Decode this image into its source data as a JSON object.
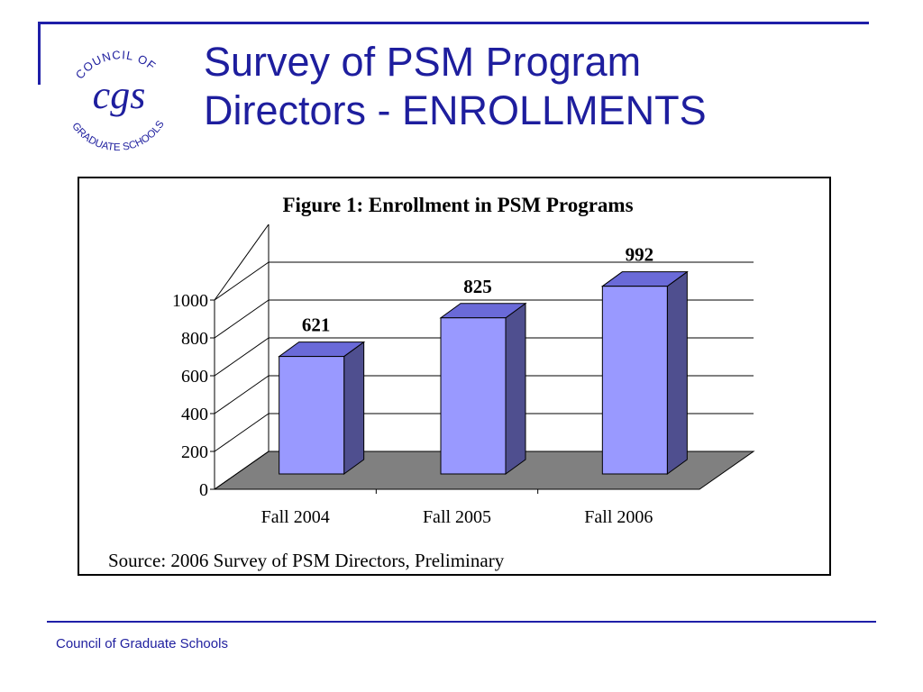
{
  "slide": {
    "title_line1": "Survey of PSM Program",
    "title_line2": "Directors - ENROLLMENTS",
    "footer": "Council of Graduate Schools"
  },
  "logo": {
    "monogram": "cgs",
    "arc_top": "COUNCIL OF",
    "arc_bottom": "GRADUATE SCHOOLS",
    "color": "#1e1e9e"
  },
  "chart_data": {
    "type": "bar",
    "title": "Figure 1: Enrollment in PSM Programs",
    "categories": [
      "Fall 2004",
      "Fall 2005",
      "Fall 2006"
    ],
    "values": [
      621,
      825,
      992
    ],
    "data_labels": [
      "621",
      "825",
      "992"
    ],
    "yticks": [
      "0",
      "200",
      "400",
      "600",
      "800",
      "1000"
    ],
    "ylim": [
      0,
      1000
    ],
    "xlabel": "",
    "ylabel": "",
    "source": "Source: 2006 Survey of PSM Directors, Preliminary",
    "grid": true,
    "style": "3d-column",
    "colors": {
      "bar_front": "#9999ff",
      "bar_side": "#4f4f8f",
      "bar_top": "#6a6ad8",
      "floor": "#808080"
    }
  }
}
